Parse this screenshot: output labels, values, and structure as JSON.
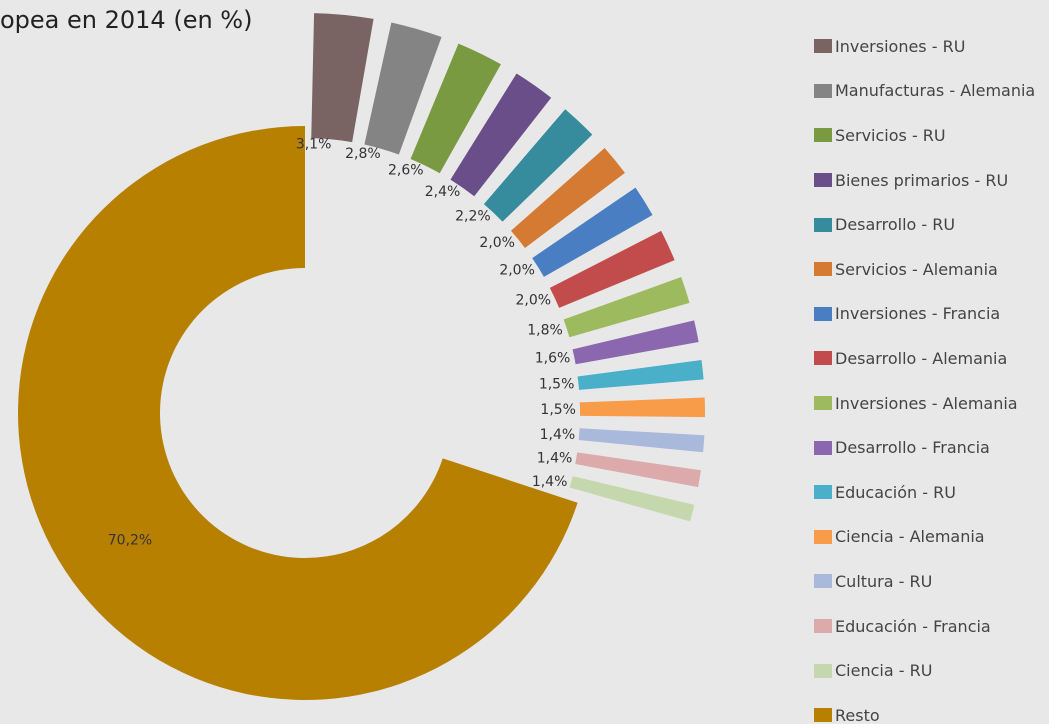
{
  "chart_data": {
    "type": "pie",
    "title": "opea en 2014 (en %)",
    "series": [
      {
        "name": "Inversiones - RU",
        "value": 3.1,
        "label": "3,1%",
        "color": "#7a6363"
      },
      {
        "name": "Manufacturas - Alemania",
        "value": 2.8,
        "label": "2,8%",
        "color": "#848484"
      },
      {
        "name": "Servicios - RU",
        "value": 2.6,
        "label": "2,6%",
        "color": "#7a9a41"
      },
      {
        "name": "Bienes primarios - RU",
        "value": 2.4,
        "label": "2,4%",
        "color": "#6a4e8a"
      },
      {
        "name": "Desarrollo - RU",
        "value": 2.2,
        "label": "2,2%",
        "color": "#368c9c"
      },
      {
        "name": "Servicios - Alemania",
        "value": 2.0,
        "label": "2,0%",
        "color": "#d47a32"
      },
      {
        "name": "Inversiones - Francia",
        "value": 2.0,
        "label": "2,0%",
        "color": "#4a7ec2"
      },
      {
        "name": "Desarrollo - Alemania",
        "value": 2.0,
        "label": "2,0%",
        "color": "#c24c4c"
      },
      {
        "name": "Inversiones - Alemania",
        "value": 1.8,
        "label": "1,8%",
        "color": "#9dbb5e"
      },
      {
        "name": "Desarrollo - Francia",
        "value": 1.6,
        "label": "1,6%",
        "color": "#8a67ae"
      },
      {
        "name": "Educación - RU",
        "value": 1.5,
        "label": "1,5%",
        "color": "#4aafc8"
      },
      {
        "name": "Ciencia - Alemania",
        "value": 1.5,
        "label": "1,5%",
        "color": "#f89c4a"
      },
      {
        "name": "Cultura - RU",
        "value": 1.4,
        "label": "1,4%",
        "color": "#a8b9dc"
      },
      {
        "name": "Educación - Francia",
        "value": 1.4,
        "label": "1,4%",
        "color": "#dcaaaa"
      },
      {
        "name": "Ciencia - RU",
        "value": 1.4,
        "label": "1,4%",
        "color": "#c5d8ad"
      },
      {
        "name": "Resto",
        "value": 70.2,
        "label": "70,2%",
        "color": "#b78000"
      }
    ],
    "legend_position": "right"
  }
}
